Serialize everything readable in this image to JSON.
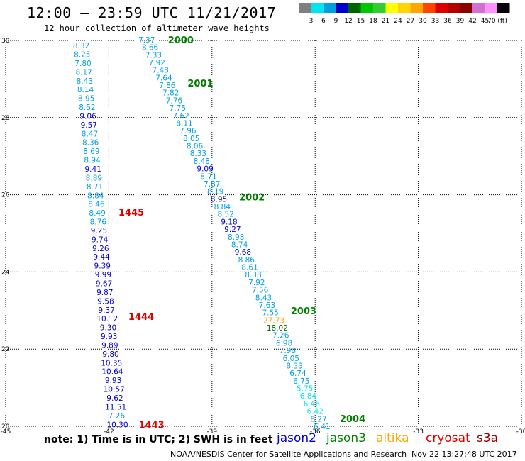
{
  "header": {
    "title": "12:00 — 23:59 UTC 11/21/2017",
    "subtitle": "12 hour collection of altimeter wave heights"
  },
  "colorbar": {
    "labels": [
      "3",
      "6",
      "9",
      "12",
      "15",
      "18",
      "21",
      "24",
      "27",
      "30",
      "33",
      "36",
      "39",
      "42",
      "45",
      "70 (ft)"
    ],
    "colors": [
      "#808080",
      "#00e5ee",
      "#00a0e0",
      "#0000cd",
      "#006400",
      "#00c800",
      "#32cd32",
      "#ffff00",
      "#ffd700",
      "#ffa500",
      "#ff4500",
      "#dc0000",
      "#b40000",
      "#8b0000",
      "#d270d2",
      "#ff90ff",
      "#000000"
    ]
  },
  "footer": {
    "note": "note: 1) Time is in UTC; 2) SWH is in feet",
    "credit": "NOAA/NESDIS Center for Satellite Applications and Research",
    "timestamp": "Nov 22 13:27:48 UTC 2017"
  },
  "legend": [
    {
      "name": "jason2",
      "color": "#0000cd"
    },
    {
      "name": "jason3",
      "color": "#008000"
    },
    {
      "name": "altika",
      "color": "#ffa500"
    },
    {
      "name": "cryosat",
      "color": "#dc0000"
    },
    {
      "name": "s3a",
      "color": "#8b0000"
    }
  ],
  "chart_data": {
    "type": "scatter",
    "title": "12 hour collection of altimeter wave heights",
    "xlim": [
      -45,
      -30
    ],
    "ylim": [
      20,
      30
    ],
    "x_ticks": [
      "-45",
      "-42",
      "-39",
      "-36",
      "-33",
      "-30"
    ],
    "y_ticks": [
      "20",
      "22",
      "24",
      "26",
      "28",
      "30"
    ],
    "grid": true,
    "tracks": [
      {
        "name": "left track",
        "values": [
          "8.32",
          "8.25",
          "7.80",
          "8.17",
          "8.43",
          "8.14",
          "8.95",
          "8.52",
          "9.06",
          "9.57",
          "8.47",
          "8.36",
          "8.69",
          "8.94",
          "9.41",
          "8.89",
          "8.71",
          "8.84",
          "8.46",
          "8.49",
          "8.76",
          "9.25",
          "9.74",
          "9.26",
          "9.44",
          "9.39",
          "9.99",
          "9.67",
          "9.87",
          "9.58",
          "9.37",
          "10.12",
          "9.30",
          "9.93",
          "9.89",
          "9.80",
          "10.35",
          "10.64",
          "9.93",
          "10.57",
          "9.62",
          "11.51",
          "7.26",
          "10.30"
        ],
        "colors": [
          "#00a0e0",
          "#00a0e0",
          "#00a0e0",
          "#00a0e0",
          "#00a0e0",
          "#00a0e0",
          "#00a0e0",
          "#00a0e0",
          "#0000cd",
          "#0000cd",
          "#00a0e0",
          "#00a0e0",
          "#00a0e0",
          "#00a0e0",
          "#0000cd",
          "#00a0e0",
          "#00a0e0",
          "#00a0e0",
          "#00a0e0",
          "#00a0e0",
          "#00a0e0",
          "#0000cd",
          "#0000cd",
          "#0000cd",
          "#0000cd",
          "#0000cd",
          "#0000cd",
          "#0000cd",
          "#0000cd",
          "#0000cd",
          "#0000cd",
          "#0000cd",
          "#0000cd",
          "#0000cd",
          "#0000cd",
          "#0000cd",
          "#0000cd",
          "#0000cd",
          "#0000cd",
          "#0000cd",
          "#0000cd",
          "#0000cd",
          "#00a0e0",
          "#0000cd"
        ],
        "x_start": -42.8,
        "y_start": 29.87,
        "x_end": -41.75,
        "y_end": 20.05,
        "time_labels": [
          {
            "text": "1445",
            "y": 25.55
          },
          {
            "text": "1444",
            "y": 22.85
          },
          {
            "text": "1443",
            "y": 20.05
          }
        ]
      },
      {
        "name": "right track",
        "values": [
          "7.37",
          "8.66",
          "7.33",
          "7.92",
          "7.48",
          "7.64",
          "7.86",
          "7.82",
          "7.76",
          "7.75",
          "7.62",
          "8.11",
          "7.96",
          "8.05",
          "8.06",
          "8.33",
          "8.48",
          "9.09",
          "8.71",
          "7.87",
          "8.19",
          "8.95",
          "8.84",
          "8.52",
          "9.18",
          "9.27",
          "8.98",
          "8.74",
          "9.68",
          "8.86",
          "8.61",
          "8.38",
          "7.92",
          "7.56",
          "8.43",
          "7.63",
          "7.55",
          "27.73",
          "18.02",
          "7.26",
          "6.98",
          "7.98",
          "6.05",
          "8.33",
          "6.74",
          "6.75",
          "5.75",
          "6.84",
          "6.46",
          "6.42",
          "8.27",
          "6.41"
        ],
        "colors": [
          "#00a0e0",
          "#00a0e0",
          "#00a0e0",
          "#00a0e0",
          "#00a0e0",
          "#00a0e0",
          "#00a0e0",
          "#00a0e0",
          "#00a0e0",
          "#00a0e0",
          "#00a0e0",
          "#00a0e0",
          "#00a0e0",
          "#00a0e0",
          "#00a0e0",
          "#00a0e0",
          "#00a0e0",
          "#0000cd",
          "#00a0e0",
          "#00a0e0",
          "#00a0e0",
          "#0000cd",
          "#00a0e0",
          "#00a0e0",
          "#0000cd",
          "#0000cd",
          "#00a0e0",
          "#00a0e0",
          "#0000cd",
          "#00a0e0",
          "#00a0e0",
          "#00a0e0",
          "#00a0e0",
          "#00a0e0",
          "#00a0e0",
          "#00a0e0",
          "#00a0e0",
          "#ffa500",
          "#006400",
          "#00a0e0",
          "#00a0e0",
          "#00a0e0",
          "#00a0e0",
          "#00a0e0",
          "#00a0e0",
          "#00a0e0",
          "#00e5ee",
          "#00e5ee",
          "#00e5ee",
          "#00e5ee",
          "#00a0e0",
          "#00a0e0"
        ],
        "x_start": -40.9,
        "y_start": 30.02,
        "x_end": -35.8,
        "y_end": 20.0,
        "time_labels": [
          {
            "text": "2000",
            "y": 30.02
          },
          {
            "text": "2001",
            "y": 28.9
          },
          {
            "text": "2002",
            "y": 25.95
          },
          {
            "text": "2003",
            "y": 23.0
          },
          {
            "text": "2004",
            "y": 20.2
          }
        ]
      }
    ]
  }
}
